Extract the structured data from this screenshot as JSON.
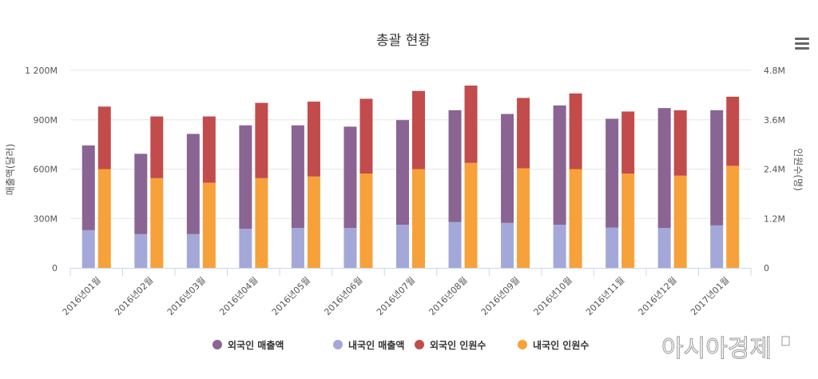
{
  "chart_data": {
    "type": "bar",
    "stacked": true,
    "title": "총괄 현황",
    "ylabel_left": "매출액(달러)",
    "ylabel_right": "인원수(명)",
    "ylim_left": [
      0,
      1200000000
    ],
    "ylim_right": [
      0,
      4800000
    ],
    "yticks_left": [
      "0",
      "300M",
      "600M",
      "900M",
      "1 200M"
    ],
    "yticks_right": [
      "0",
      "1.2M",
      "2.4M",
      "3.6M",
      "4.8M"
    ],
    "grid": true,
    "legend_position": "bottom",
    "categories": [
      "2016년01월",
      "2016년02월",
      "2016년03월",
      "2016년04월",
      "2016년05월",
      "2016년06월",
      "2016년07월",
      "2016년08월",
      "2016년09월",
      "2016년10월",
      "2016년11월",
      "2016년12월",
      "2017년01월"
    ],
    "series": [
      {
        "name": "외국인 매출액",
        "axis": "left",
        "stack": "sales",
        "color": "#8a6492",
        "values": [
          515000000,
          488000000,
          609000000,
          629000000,
          624000000,
          616000000,
          636000000,
          680000000,
          662000000,
          725000000,
          661000000,
          729000000,
          700000000
        ]
      },
      {
        "name": "내국인 매출액",
        "axis": "left",
        "stack": "sales",
        "color": "#a4a8d8",
        "values": [
          229000000,
          205000000,
          205000000,
          237000000,
          242000000,
          242000000,
          262000000,
          278000000,
          273000000,
          262000000,
          245000000,
          242000000,
          258000000
        ]
      },
      {
        "name": "외국인 인원수",
        "axis": "right",
        "stack": "people",
        "color": "#c24c4c",
        "values": [
          1520000,
          1500000,
          1610000,
          1830000,
          1820000,
          1820000,
          1900000,
          1880000,
          1710000,
          1840000,
          1510000,
          1590000,
          1680000
        ]
      },
      {
        "name": "내국인 인원수",
        "axis": "right",
        "stack": "people",
        "color": "#f7a13a",
        "values": [
          2400000,
          2180000,
          2070000,
          2180000,
          2220000,
          2290000,
          2400000,
          2550000,
          2420000,
          2400000,
          2290000,
          2240000,
          2480000
        ]
      }
    ]
  },
  "menu_icon": "hamburger-menu-icon",
  "watermark": "아시아경제"
}
